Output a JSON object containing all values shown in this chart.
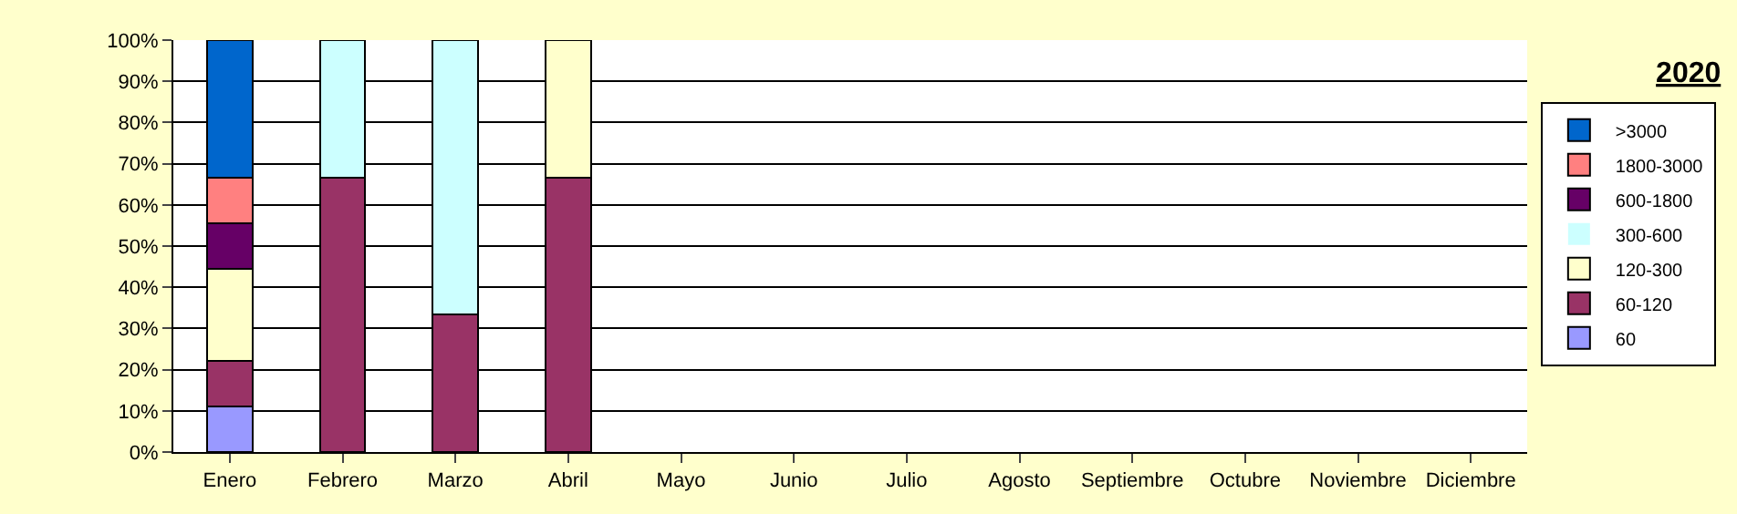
{
  "chart_data": {
    "type": "bar",
    "title": "2020",
    "stacked": true,
    "categories": [
      "Enero",
      "Febrero",
      "Marzo",
      "Abril",
      "Mayo",
      "Junio",
      "Julio",
      "Agosto",
      "Septiembre",
      "Octubre",
      "Noviembre",
      "Diciembre"
    ],
    "series": [
      {
        "name": "60",
        "color": "#9999ff",
        "values": [
          11.1,
          0,
          0,
          0,
          0,
          0,
          0,
          0,
          0,
          0,
          0,
          0
        ]
      },
      {
        "name": "60-120",
        "color": "#993366",
        "values": [
          11.1,
          66.7,
          33.3,
          66.7,
          0,
          0,
          0,
          0,
          0,
          0,
          0,
          0
        ]
      },
      {
        "name": "120-300",
        "color": "#ffffcc",
        "values": [
          22.2,
          0,
          0,
          33.3,
          0,
          0,
          0,
          0,
          0,
          0,
          0,
          0
        ]
      },
      {
        "name": "300-600",
        "color": "#ccffff",
        "values": [
          0,
          33.3,
          66.7,
          0,
          0,
          0,
          0,
          0,
          0,
          0,
          0,
          0
        ]
      },
      {
        "name": "600-1800",
        "color": "#660066",
        "values": [
          11.1,
          0,
          0,
          0,
          0,
          0,
          0,
          0,
          0,
          0,
          0,
          0
        ]
      },
      {
        "name": "1800-3000",
        "color": "#ff8080",
        "values": [
          11.1,
          0,
          0,
          0,
          0,
          0,
          0,
          0,
          0,
          0,
          0,
          0
        ]
      },
      {
        "name": ">3000",
        "color": "#0066cc",
        "values": [
          33.4,
          0,
          0,
          0,
          0,
          0,
          0,
          0,
          0,
          0,
          0,
          0
        ]
      }
    ],
    "ylim": [
      0,
      100
    ],
    "yticks": [
      {
        "value": 0,
        "label": "0%"
      },
      {
        "value": 10,
        "label": "10%"
      },
      {
        "value": 20,
        "label": "20%"
      },
      {
        "value": 30,
        "label": "30%"
      },
      {
        "value": 40,
        "label": "40%"
      },
      {
        "value": 50,
        "label": "50%"
      },
      {
        "value": 60,
        "label": "60%"
      },
      {
        "value": 70,
        "label": "70%"
      },
      {
        "value": 80,
        "label": "80%"
      },
      {
        "value": 90,
        "label": "90%"
      },
      {
        "value": 100,
        "label": "100%"
      }
    ],
    "grid": "y",
    "legend": "right"
  }
}
